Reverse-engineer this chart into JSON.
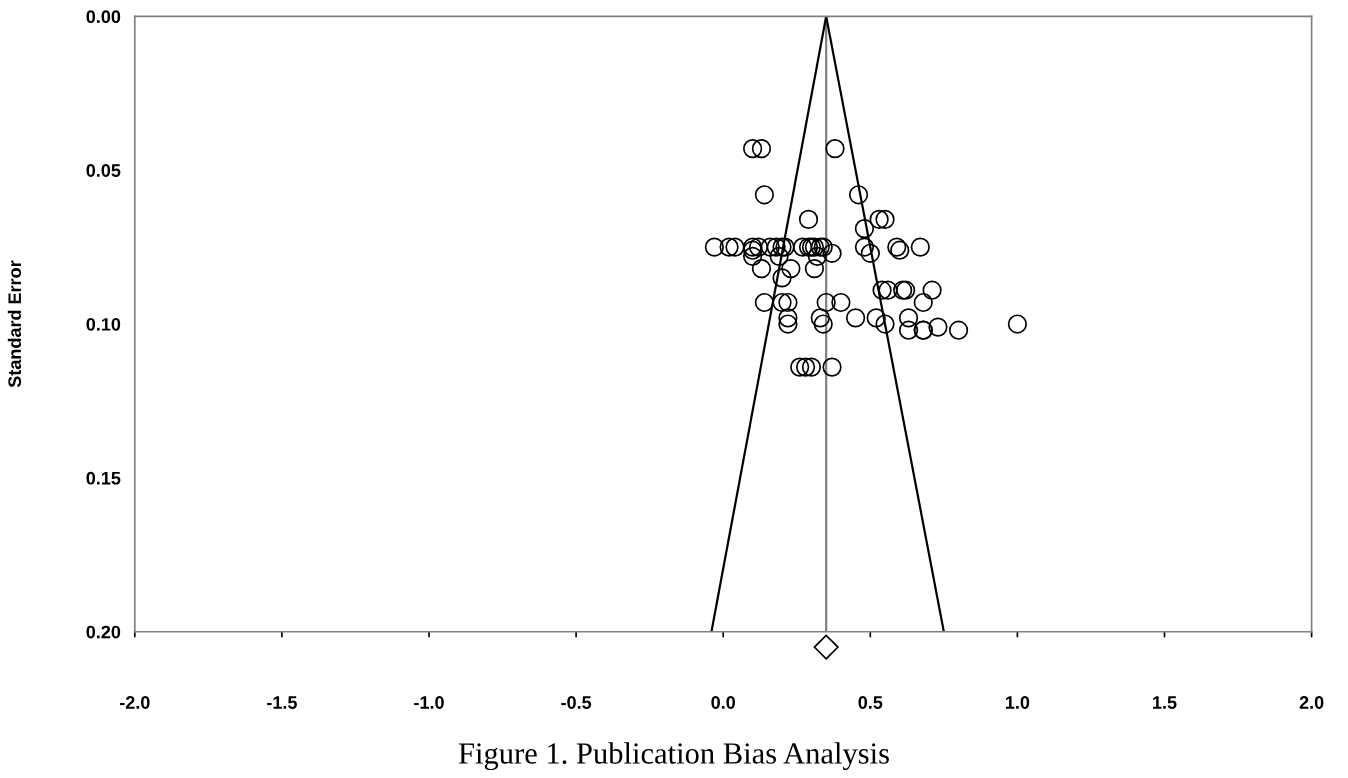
{
  "chart_data": {
    "type": "scatter",
    "ylabel": "Standard Error",
    "annotations": [
      "Figure 1. Publication Bias Analysis"
    ],
    "xlim": [
      -2.0,
      2.0
    ],
    "ylim": [
      0.2,
      0.0
    ],
    "xticks": [
      {
        "value": -2.0,
        "label": "-2.0"
      },
      {
        "value": -1.5,
        "label": "-1.5"
      },
      {
        "value": -1.0,
        "label": "-1.0"
      },
      {
        "value": -0.5,
        "label": "-0.5"
      },
      {
        "value": 0.0,
        "label": "0.0"
      },
      {
        "value": 0.5,
        "label": "0.5"
      },
      {
        "value": 1.0,
        "label": "1.0"
      },
      {
        "value": 1.5,
        "label": "1.5"
      },
      {
        "value": 2.0,
        "label": "2.0"
      }
    ],
    "yticks": [
      {
        "value": 0.0,
        "label": "0.00"
      },
      {
        "value": 0.05,
        "label": "0.05"
      },
      {
        "value": 0.1,
        "label": "0.10"
      },
      {
        "value": 0.15,
        "label": "0.15"
      },
      {
        "value": 0.2,
        "label": "0.20"
      }
    ],
    "grid": false,
    "legend": false,
    "ref_lines": [
      {
        "axis": "x",
        "value": 0.35,
        "label": null,
        "color": "#808080"
      }
    ],
    "series": [
      {
        "color": "#000000",
        "marker": "circle",
        "x": [
          0.1,
          0.13,
          0.38,
          0.14,
          0.46,
          0.29,
          0.53,
          0.55,
          0.48,
          -0.03,
          0.02,
          0.04,
          0.1,
          0.12,
          0.16,
          0.18,
          0.2,
          0.21,
          0.27,
          0.29,
          0.3,
          0.31,
          0.33,
          0.34,
          0.48,
          0.59,
          0.67,
          0.1,
          0.1,
          0.19,
          0.32,
          0.37,
          0.5,
          0.6,
          0.13,
          0.23,
          0.31,
          0.2,
          0.54,
          0.56,
          0.61,
          0.62,
          0.71,
          0.14,
          0.2,
          0.22,
          0.35,
          0.4,
          0.68,
          0.22,
          0.33,
          0.45,
          0.52,
          0.63,
          0.22,
          0.34,
          0.55,
          1.0,
          0.73,
          0.63,
          0.68,
          0.68,
          0.8,
          0.26,
          0.28,
          0.3,
          0.37
        ],
        "values": [
          0.043,
          0.043,
          0.043,
          0.058,
          0.058,
          0.066,
          0.066,
          0.066,
          0.069,
          0.075,
          0.075,
          0.075,
          0.075,
          0.075,
          0.075,
          0.075,
          0.075,
          0.075,
          0.075,
          0.075,
          0.075,
          0.075,
          0.075,
          0.075,
          0.075,
          0.075,
          0.075,
          0.076,
          0.078,
          0.078,
          0.078,
          0.077,
          0.077,
          0.076,
          0.082,
          0.082,
          0.082,
          0.085,
          0.089,
          0.089,
          0.089,
          0.089,
          0.089,
          0.093,
          0.093,
          0.093,
          0.093,
          0.093,
          0.093,
          0.098,
          0.098,
          0.098,
          0.098,
          0.098,
          0.1,
          0.1,
          0.1,
          0.1,
          0.101,
          0.102,
          0.102,
          0.102,
          0.102,
          0.114,
          0.114,
          0.114,
          0.114
        ]
      },
      {
        "type": "line",
        "color": "#000000",
        "marker": "none",
        "x": [
          0.35,
          -0.04
        ],
        "values": [
          0.0,
          0.2
        ]
      },
      {
        "type": "line",
        "color": "#000000",
        "marker": "none",
        "x": [
          0.35,
          0.75
        ],
        "values": [
          0.0,
          0.2
        ]
      }
    ]
  }
}
